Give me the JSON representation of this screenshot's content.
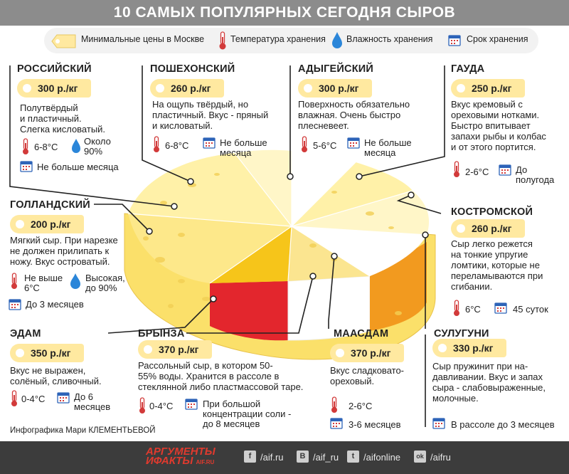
{
  "title": "10 САМЫХ ПОПУЛЯРНЫХ СЕГОДНЯ СЫРОВ",
  "legend": {
    "price": "Минимальные цены в Москве",
    "temperature": "Температура хранения",
    "humidity": "Влажность хранения",
    "shelf_life": "Срок хранения"
  },
  "cheeses": {
    "rossiysky": {
      "name": "РОССИЙСКИЙ",
      "price": "300 р./кг",
      "desc": [
        "Полутвёрдый",
        "и пластичный.",
        "Слегка кисловатый."
      ],
      "temp": "6-8°С",
      "humidity": [
        "Около",
        "90%"
      ],
      "shelf": "Не больше месяца"
    },
    "poshekhonsky": {
      "name": "ПОШЕХОНСКИЙ",
      "price": "260 р./кг",
      "desc": [
        "На ощупь твёрдый, но",
        "пластичный. Вкус - пряный",
        "и кисловатый."
      ],
      "temp": "6-8°С",
      "shelf": [
        "Не больше",
        "месяца"
      ]
    },
    "adygeysky": {
      "name": "АДЫГЕЙСКИЙ",
      "price": "300 р./кг",
      "desc": [
        "Поверхность обязательно",
        "влажная. Очень быстро",
        "плесневеет."
      ],
      "temp": "5-6°С",
      "shelf": [
        "Не больше",
        "месяца"
      ]
    },
    "gauda": {
      "name": "ГАУДА",
      "price": "250 р./кг",
      "desc": [
        "Вкус кремовый с",
        "ореховыми нотками.",
        "Быстро впитывает",
        "запахи рыбы и колбас",
        "и от этого портится."
      ],
      "temp": "2-6°С",
      "shelf": [
        "До",
        "полугода"
      ]
    },
    "gollandsky": {
      "name": "ГОЛЛАНДСКИЙ",
      "price": "200 р./кг",
      "desc": [
        "Мягкий сыр. При нарезке",
        "не должен прилипать к",
        "ножу. Вкус островатый."
      ],
      "temp": [
        "Не выше",
        "6°С"
      ],
      "humidity": [
        "Высокая,",
        "до 90%"
      ],
      "shelf": "До 3 месяцев"
    },
    "kostromskoy": {
      "name": "КОСТРОМСКОЙ",
      "price": "260 р./кг",
      "desc": [
        "Сыр легко режется",
        "на тонкие упругие",
        "ломтики, которые не",
        "переламываются при",
        "сгибании."
      ],
      "temp": "6°С",
      "shelf": "45 суток"
    },
    "edam": {
      "name": "ЭДАМ",
      "price": "350 р./кг",
      "desc": [
        "Вкус не выражен,",
        "солёный, сливочный."
      ],
      "temp": "0-4°С",
      "shelf": [
        "До 6",
        "месяцев"
      ]
    },
    "brynza": {
      "name": "БРЫНЗА",
      "price": "370 р./кг",
      "desc": [
        "Рассольный сыр, в котором 50-",
        "55% воды. Хранится в рассоле в",
        "стеклянной либо пластмассовой таре."
      ],
      "temp": "0-4°С",
      "shelf": [
        "При большой",
        "концентрации соли -",
        "до 8 месяцев"
      ]
    },
    "maasdam": {
      "name": "МААСДАМ",
      "price": "370 р./кг",
      "desc": [
        "Вкус сладковато-",
        "ореховый."
      ],
      "temp": "2-6°С",
      "shelf": "3-6 месяцев"
    },
    "suluguni": {
      "name": "СУЛУГУНИ",
      "price": "330 р./кг",
      "desc": [
        "Сыр пружинит при на-",
        "давливании. Вкус и запах",
        "сыра - слабовыраженные,",
        "молочные."
      ],
      "shelf": "В рассоле до 3 месяцев"
    }
  },
  "credit": "Инфографика Мари КЛЕМЕНТЬЕВОЙ",
  "footer": {
    "brand_top": "АРГУМЕНТЫ",
    "brand_bottom": "ИФАКТЫ",
    "brand_site": "AIF.RU",
    "social": [
      {
        "icon": "facebook-icon",
        "glyph": "f",
        "label": "/aif.ru"
      },
      {
        "icon": "vk-icon",
        "glyph": "B",
        "label": "/aif_ru"
      },
      {
        "icon": "twitter-icon",
        "glyph": "t",
        "label": "/aifonline"
      },
      {
        "icon": "odnoklassniki-icon",
        "glyph": "ok",
        "label": "/aifru"
      }
    ]
  },
  "colors": {
    "header": "#8c8c8c",
    "price_tag": "#ffe9a0",
    "leader_line": "#222222",
    "cheese_light": "#fff1a8",
    "cheese_yellow": "#fbe06a",
    "cheese_deep": "#f6c51a",
    "cheese_red": "#e3262d",
    "cheese_orange": "#f29a1f",
    "footer": "#3c3c3c",
    "brand": "#e03a2e"
  }
}
